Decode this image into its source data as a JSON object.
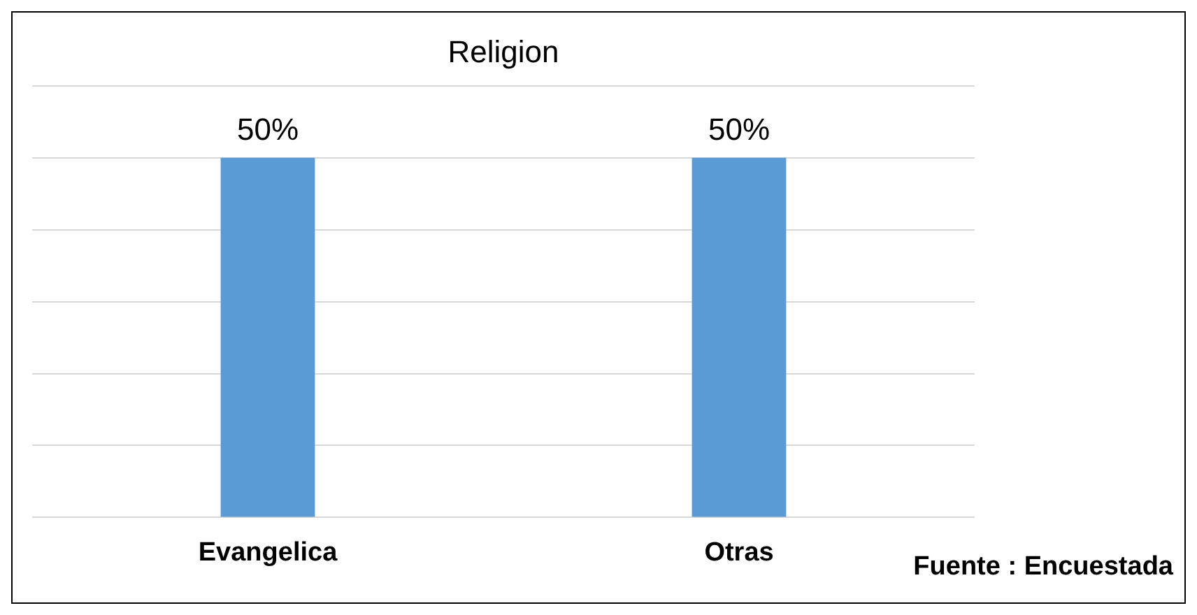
{
  "chart_data": {
    "type": "bar",
    "title": "Religion",
    "categories": [
      "Evangelica",
      "Otras"
    ],
    "values": [
      50,
      50
    ],
    "value_labels": [
      "50%",
      "50%"
    ],
    "color": "#5b9bd5",
    "ylim": [
      0,
      60
    ],
    "yticks": [
      {
        "value": 0,
        "label": null
      },
      {
        "value": 10,
        "label": null
      },
      {
        "value": 20,
        "label": null
      },
      {
        "value": 30,
        "label": null
      },
      {
        "value": 40,
        "label": null
      },
      {
        "value": 50,
        "label": null
      },
      {
        "value": 60,
        "label": null
      }
    ],
    "tick_labels": "x",
    "grid": "y",
    "legend": false,
    "annotations": [
      "Fuente : Encuestada"
    ]
  }
}
